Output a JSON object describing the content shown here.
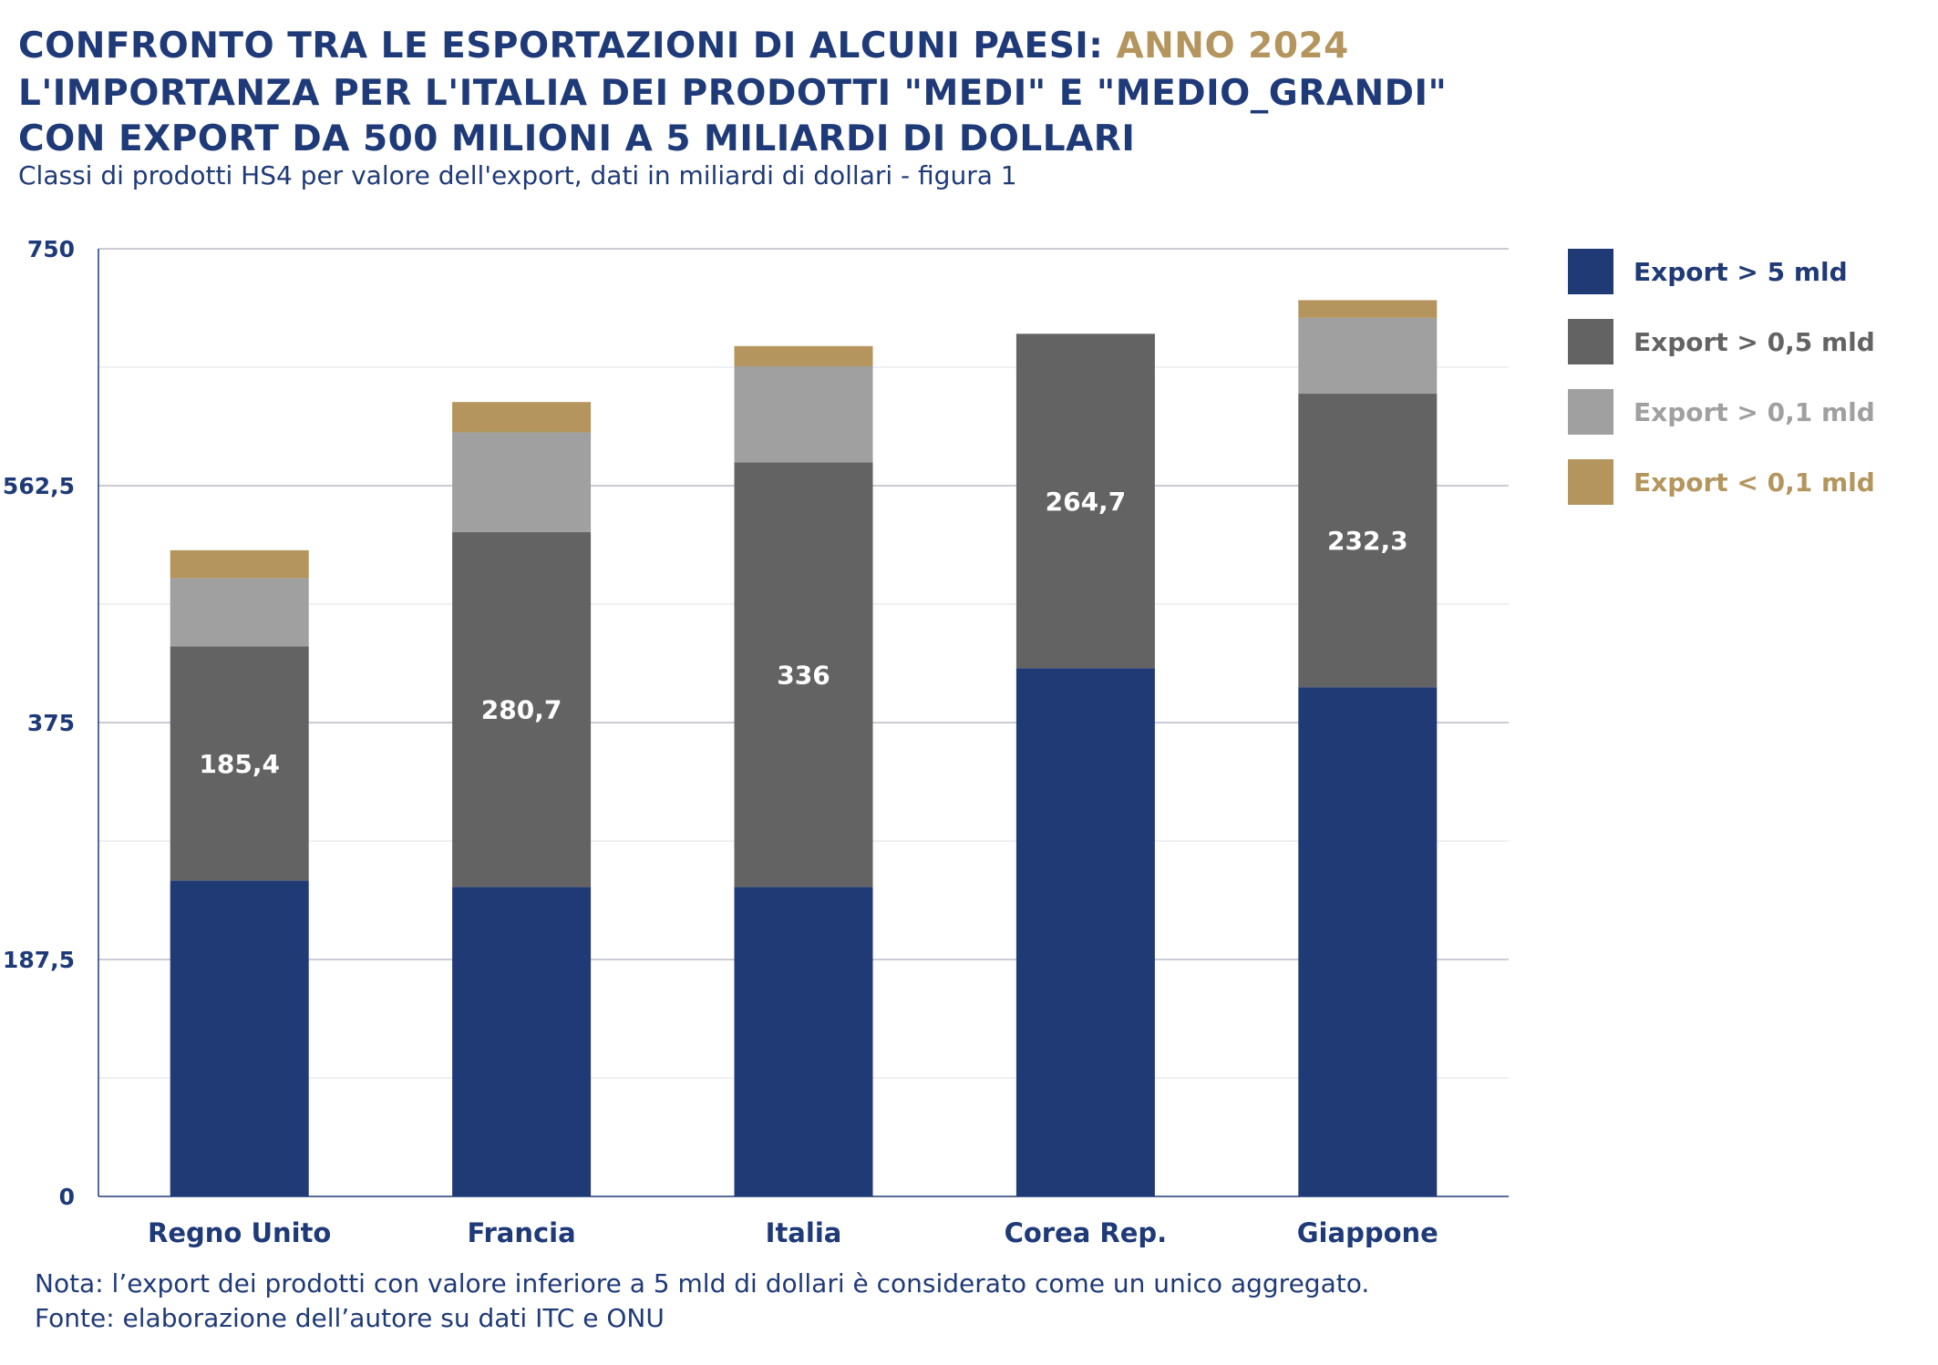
{
  "header": {
    "title_line1": "CONFRONTO TRA LE ESPORTAZIONI DI ALCUNI PAESI:",
    "title_line1_accent": "ANNO 2024",
    "title_line2": "L'IMPORTANZA PER L'ITALIA DEI PRODOTTI \"MEDI\" E \"MEDIO_GRANDI\"",
    "title_line3": "CON EXPORT DA 500 MILIONI A 5 MILIARDI DI DOLLARI",
    "subtitle": "Classi di prodotti HS4 per valore dell'export, dati in miliardi di dollari - figura 1"
  },
  "footer": {
    "note": "Nota: l’export dei prodotti con valore inferiore a 5 mld di dollari è considerato come un unico aggregato.",
    "source": "Fonte: elaborazione dell’autore su dati ITC e ONU"
  },
  "colors": {
    "title": "#1f3a78",
    "accent": "#b3955d",
    "gridline": "#b8bcc8",
    "axis": "#1f3a78"
  },
  "chart_data": {
    "type": "bar",
    "stacked": true,
    "title": "CONFRONTO TRA LE ESPORTAZIONI DI ALCUNI PAESI: ANNO 2024",
    "xlabel": "",
    "ylabel": "",
    "categories": [
      "Regno Unito",
      "Francia",
      "Italia",
      "Corea Rep.",
      "Giappone"
    ],
    "ylim": [
      0,
      750
    ],
    "yticks": [
      0,
      187.5,
      375,
      562.5,
      750
    ],
    "ytick_labels": [
      "0",
      "187,5",
      "375",
      "562,5",
      "750"
    ],
    "grid": true,
    "legend_position": "right",
    "series": [
      {
        "name": "Export > 5 mld",
        "color": "#203a76",
        "label_color": "#203a76",
        "values": [
          250,
          245,
          245,
          418,
          403
        ],
        "show_labels": false
      },
      {
        "name": "Export > 0,5 mld",
        "color": "#636363",
        "label_color": "#636363",
        "values": [
          185.4,
          280.7,
          336,
          264.7,
          232.3
        ],
        "show_labels": true,
        "data_labels": [
          "185,4",
          "280,7",
          "336",
          "264,7",
          "232,3"
        ]
      },
      {
        "name": "Export > 0,1 mld",
        "color": "#a0a0a0",
        "label_color": "#a0a0a0",
        "values": [
          54,
          79,
          76,
          0,
          60
        ],
        "show_labels": false
      },
      {
        "name": "Export < 0,1 mld",
        "color": "#b3955d",
        "label_color": "#b3955d",
        "values": [
          22,
          24,
          16,
          0,
          14
        ],
        "show_labels": false
      }
    ]
  }
}
